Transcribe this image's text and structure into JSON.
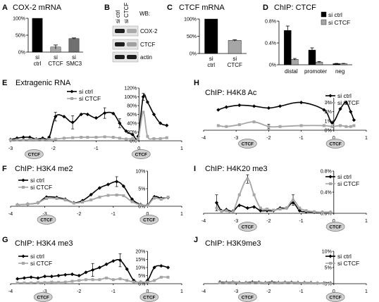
{
  "colors": {
    "black": "#000000",
    "gray": "#a6a6a6",
    "dark_gray": "#707070",
    "ctcf_marker_fill": "#d0d0d0"
  },
  "legend": {
    "si_ctrl": "si ctrl",
    "si_ctcf": "si CTCF"
  },
  "ctcf_marker_label": "CTCF",
  "chart_data": [
    {
      "id": "A",
      "type": "bar",
      "title": "COX-2 mRNA",
      "categories": [
        "si ctrl",
        "si CTCF",
        "si SMC3"
      ],
      "values": [
        100,
        15,
        40
      ],
      "errors": [
        0,
        6,
        2
      ],
      "bar_colors": [
        "black",
        "gray",
        "dark_gray"
      ],
      "ylim": [
        0,
        100
      ],
      "yticks": [
        0,
        50,
        100
      ],
      "ytick_labels": [
        "0%",
        "50%",
        "100%"
      ]
    },
    {
      "id": "B",
      "type": "western_blot",
      "label": "WB:",
      "lanes": [
        "si ctrl",
        "si CTCF"
      ],
      "rows": [
        {
          "name": "COX-2",
          "intensities": [
            1.0,
            0.3
          ]
        },
        {
          "name": "CTCF",
          "intensities": [
            1.0,
            0.35
          ]
        },
        {
          "name": "actin",
          "intensities": [
            1.0,
            1.0
          ]
        }
      ]
    },
    {
      "id": "C",
      "type": "bar",
      "title": "CTCF mRNA",
      "categories": [
        "si ctrl",
        "si CTCF"
      ],
      "values": [
        100,
        38
      ],
      "errors": [
        0,
        2
      ],
      "bar_colors": [
        "black",
        "gray"
      ],
      "ylim": [
        0,
        100
      ],
      "yticks": [
        0,
        50,
        100
      ],
      "ytick_labels": [
        "0%",
        "50%",
        "100%"
      ]
    },
    {
      "id": "D",
      "type": "bar",
      "title": "ChIP: CTCF",
      "categories": [
        "distal",
        "promoter",
        "neg"
      ],
      "series": [
        {
          "name": "si ctrl",
          "values": [
            0.63,
            0.27,
            0.02
          ],
          "errors": [
            0.08,
            0.04,
            0.005
          ]
        },
        {
          "name": "si CTCF",
          "values": [
            0.1,
            0.05,
            0.02
          ],
          "errors": [
            0.015,
            0.01,
            0.005
          ]
        }
      ],
      "ylim": [
        0,
        0.8
      ],
      "yticks": [
        0,
        0.4,
        0.8
      ],
      "ytick_labels": [
        "0%",
        "0.4%",
        "0.8%"
      ]
    },
    {
      "id": "E",
      "type": "line",
      "title": "Extragenic RNA",
      "xlim": [
        -3,
        1
      ],
      "xticks": [
        -3,
        -2,
        -1,
        0,
        1
      ],
      "xtick_labels": [
        "-3",
        "-2",
        "-1",
        "0",
        "1"
      ],
      "ylim": [
        0,
        120
      ],
      "yticks": [
        0,
        20,
        40,
        60,
        80,
        100,
        120
      ],
      "ytick_labels": [
        "0%",
        "20%",
        "40%",
        "60%",
        "80%",
        "100%",
        "120%"
      ],
      "ctcf_sites": [
        -2.45,
        0.05
      ],
      "series": [
        {
          "name": "si ctrl",
          "x": [
            -3.0,
            -2.85,
            -2.7,
            -2.55,
            -2.4,
            -2.25,
            -2.1,
            -1.95,
            -1.75,
            -1.55,
            -1.35,
            -1.2,
            -1.0,
            -0.8,
            -0.6,
            -0.45,
            -0.3,
            -0.15,
            -0.02,
            0.1,
            0.2,
            0.35,
            0.5,
            0.65
          ],
          "y": [
            3,
            6,
            8,
            8,
            4,
            6,
            8,
            55,
            55,
            42,
            60,
            60,
            52,
            63,
            62,
            40,
            22,
            14,
            10,
            100,
            88,
            60,
            40,
            35
          ],
          "err": [
            0,
            0,
            0,
            0,
            0,
            0,
            0,
            10,
            0,
            15,
            0,
            0,
            0,
            12,
            0,
            10,
            0,
            0,
            0,
            8,
            0,
            0,
            0,
            0
          ]
        },
        {
          "name": "si CTCF",
          "x": [
            -3.0,
            -2.85,
            -2.7,
            -2.55,
            -2.4,
            -2.25,
            -2.1,
            -1.95,
            -1.75,
            -1.55,
            -1.35,
            -1.2,
            -1.0,
            -0.8,
            -0.6,
            -0.45,
            -0.3,
            -0.15,
            -0.02,
            0.1,
            0.2,
            0.35,
            0.5,
            0.65
          ],
          "y": [
            2,
            2,
            2,
            3,
            3,
            2,
            3,
            4,
            6,
            7,
            8,
            8,
            8,
            9,
            8,
            6,
            4,
            5,
            5,
            65,
            10,
            5,
            5,
            7
          ],
          "err": [
            0,
            0,
            0,
            0,
            0,
            0,
            0,
            0,
            0,
            0,
            0,
            0,
            0,
            0,
            0,
            0,
            0,
            0,
            0,
            0,
            0,
            0,
            0,
            0
          ]
        }
      ]
    },
    {
      "id": "H",
      "type": "line",
      "title": "ChIP: H4K8 Ac",
      "xlim": [
        -4,
        1
      ],
      "xticks": [
        -4,
        -3,
        -2,
        -1,
        0,
        1
      ],
      "xtick_labels": [
        "-4",
        "-3",
        "-2",
        "-1",
        "0",
        "1"
      ],
      "ylim": [
        0,
        3.5
      ],
      "yticks": [
        0,
        1,
        2,
        3
      ],
      "ytick_labels": [
        "0%",
        "1%",
        "2%",
        "3%"
      ],
      "ctcf_sites": [
        -2.65,
        0.05
      ],
      "series": [
        {
          "name": "si ctrl",
          "x": [
            -3.55,
            -3.3,
            -2.9,
            -2.45,
            -2.0,
            -1.65,
            -1.0,
            -0.3,
            -0.05,
            0.2,
            0.38,
            0.52,
            0.62
          ],
          "y": [
            2.2,
            2.5,
            2.7,
            2.6,
            2.4,
            2.6,
            3.0,
            2.2,
            0.8,
            2.3,
            3.0,
            2.0,
            1.1
          ],
          "err": [
            0,
            0,
            0,
            0,
            0,
            0,
            0,
            0,
            0,
            0,
            0,
            0,
            0
          ]
        },
        {
          "name": "si CTCF",
          "x": [
            -3.55,
            -3.3,
            -2.9,
            -2.45,
            -2.0,
            -1.65,
            -1.0,
            -0.3,
            -0.05,
            0.2,
            0.38,
            0.52,
            0.62
          ],
          "y": [
            0.5,
            0.4,
            0.6,
            0.9,
            0.4,
            0.4,
            0.5,
            0.5,
            0.4,
            0.5,
            0.4,
            0.4,
            0.5
          ],
          "err": [
            0,
            0,
            0,
            0,
            0.25,
            0,
            0,
            0,
            0,
            0,
            0,
            0,
            0
          ]
        }
      ]
    },
    {
      "id": "F",
      "type": "line",
      "title": "ChIP: H3K4 me2",
      "xlim": [
        -4,
        1
      ],
      "xticks": [
        -4,
        -3,
        -2,
        -1,
        0,
        1
      ],
      "xtick_labels": [
        "-4",
        "-3",
        "-2",
        "-1",
        "0",
        "1"
      ],
      "ylim": [
        0,
        10
      ],
      "yticks": [
        0,
        5,
        10
      ],
      "ytick_labels": [
        "0%",
        "5%",
        "10%"
      ],
      "ctcf_sites": [
        -2.95,
        0.05
      ],
      "series": [
        {
          "name": "si ctrl",
          "x": [
            -3.8,
            -3.5,
            -3.2,
            -2.95,
            -2.65,
            -2.4,
            -2.15,
            -1.9,
            -1.65,
            -1.4,
            -1.15,
            -0.9,
            -0.7,
            -0.45,
            -0.2,
            0.0,
            0.2,
            0.4,
            0.6
          ],
          "y": [
            0.4,
            0.6,
            1.0,
            2.6,
            2.5,
            2.0,
            1.0,
            1.6,
            3.3,
            5.2,
            6.2,
            7.0,
            5.7,
            2.0,
            0.5,
            0.4,
            2.7,
            2.3,
            2.5
          ],
          "err": [
            0,
            0,
            0,
            0,
            0,
            0,
            0,
            0,
            0,
            0,
            0,
            1.4,
            0,
            0,
            0,
            0,
            0,
            0,
            0
          ]
        },
        {
          "name": "si CTCF",
          "x": [
            -3.8,
            -3.5,
            -3.2,
            -2.95,
            -2.65,
            -2.4,
            -2.15,
            -1.9,
            -1.65,
            -1.4,
            -1.15,
            -0.9,
            -0.7,
            -0.45,
            -0.2,
            0.0,
            0.2,
            0.4,
            0.6
          ],
          "y": [
            0.4,
            0.6,
            1.0,
            2.2,
            2.2,
            1.8,
            0.9,
            1.2,
            1.8,
            2.6,
            3.1,
            3.2,
            3.0,
            1.3,
            0.4,
            0.3,
            2.3,
            2.0,
            2.6
          ],
          "err": [
            0,
            0,
            0,
            0,
            0,
            0,
            0,
            0,
            0,
            0,
            0,
            0,
            0,
            0,
            0,
            0,
            0,
            0,
            0
          ]
        }
      ]
    },
    {
      "id": "I",
      "type": "line",
      "title": "ChIP: H4K20 me3",
      "xlim": [
        -4,
        1
      ],
      "xticks": [
        -4,
        -3,
        -2,
        -1,
        0,
        1
      ],
      "xtick_labels": [
        "-4",
        "-3",
        "-2",
        "-1",
        "0",
        "1"
      ],
      "ylim": [
        0,
        0.8
      ],
      "yticks": [
        0,
        0.4,
        0.8
      ],
      "ytick_labels": [
        "0.0%",
        "0.4%",
        "0.8%"
      ],
      "ctcf_sites": [
        -2.65,
        0.05
      ],
      "series": [
        {
          "name": "si ctrl",
          "x": [
            -3.6,
            -3.45,
            -3.3,
            -3.1,
            -2.9,
            -2.65,
            -2.45,
            -2.25,
            -2.05,
            -1.85,
            -1.65,
            -1.45,
            -1.25,
            -1.05,
            -0.85,
            -0.6,
            -0.35,
            -0.1
          ],
          "y": [
            0.2,
            0.05,
            0.07,
            0.04,
            0.15,
            0.1,
            0.12,
            0.05,
            0.05,
            0.05,
            0.1,
            0.1,
            0.2,
            0.05,
            0.03,
            0.02,
            0.02,
            0.02
          ],
          "err": [
            0.15,
            0,
            0,
            0,
            0,
            0,
            0,
            0,
            0,
            0,
            0,
            0,
            0,
            0,
            0,
            0,
            0,
            0
          ]
        },
        {
          "name": "si CTCF",
          "x": [
            -3.6,
            -3.45,
            -3.3,
            -3.1,
            -2.9,
            -2.65,
            -2.45,
            -2.25,
            -2.05,
            -1.85,
            -1.65,
            -1.45,
            -1.25,
            -1.05,
            -0.85,
            -0.6,
            -0.35,
            -0.1
          ],
          "y": [
            0.1,
            0.04,
            0.05,
            0.03,
            0.35,
            0.65,
            0.35,
            0.1,
            0.08,
            0.06,
            0.08,
            0.1,
            0.25,
            0.1,
            0.05,
            0.03,
            0.02,
            0.02
          ],
          "err": [
            0,
            0,
            0,
            0,
            0,
            0.08,
            0,
            0,
            0,
            0,
            0,
            0,
            0.1,
            0,
            0,
            0,
            0,
            0
          ]
        }
      ]
    },
    {
      "id": "G",
      "type": "line",
      "title": "ChIP: H3K4 me3",
      "xlim": [
        -4,
        1
      ],
      "xticks": [
        -4,
        -3,
        -2,
        -1,
        0,
        1
      ],
      "xtick_labels": [
        "-4",
        "-3",
        "-2",
        "-1",
        "0",
        "1"
      ],
      "ylim": [
        0,
        20
      ],
      "yticks": [
        0,
        5,
        10,
        15,
        20
      ],
      "ytick_labels": [
        "0%",
        "5%",
        "10%",
        "15%",
        "20%"
      ],
      "ctcf_sites": [
        -3.05,
        0.05
      ],
      "series": [
        {
          "name": "si ctrl",
          "x": [
            -3.8,
            -3.6,
            -3.4,
            -3.2,
            -3.0,
            -2.8,
            -2.6,
            -2.4,
            -2.2,
            -2.0,
            -1.8,
            -1.6,
            -1.4,
            -1.2,
            -1.0,
            -0.8,
            -0.6,
            -0.4,
            -0.2,
            0.0,
            0.2,
            0.4,
            0.6
          ],
          "y": [
            3,
            3.5,
            4,
            3.5,
            4.5,
            4.5,
            5,
            5.5,
            5.8,
            5,
            7,
            8.5,
            10,
            12,
            14,
            14.5,
            9,
            2,
            1,
            2,
            10,
            11,
            10
          ],
          "err": [
            0,
            0,
            0,
            0,
            0,
            0,
            0,
            0,
            0,
            0,
            0,
            4,
            0,
            0,
            0,
            4,
            0,
            0,
            0,
            0,
            0,
            0,
            0
          ]
        },
        {
          "name": "si CTCF",
          "x": [
            -3.8,
            -3.6,
            -3.4,
            -3.2,
            -3.0,
            -2.8,
            -2.6,
            -2.4,
            -2.2,
            -2.0,
            -1.8,
            -1.6,
            -1.4,
            -1.2,
            -1.0,
            -0.8,
            -0.6,
            -0.4,
            -0.2,
            0.0,
            0.2,
            0.4,
            0.6
          ],
          "y": [
            0.5,
            0.5,
            0.5,
            0.7,
            0.7,
            1.0,
            0.8,
            1.0,
            1.5,
            2.0,
            2.5,
            2.5,
            2.5,
            3.5,
            2.5,
            3.0,
            2.0,
            1.0,
            1.0,
            1.0,
            2.0,
            4.0,
            4.0
          ],
          "err": [
            0,
            0,
            0,
            0,
            0,
            0,
            0,
            0,
            0,
            0,
            0,
            0,
            0,
            0,
            0,
            0,
            0,
            0,
            0,
            0,
            0,
            0,
            0
          ]
        }
      ]
    },
    {
      "id": "J",
      "type": "line",
      "title": "ChIP: H3K9me3",
      "xlim": [
        -4,
        1
      ],
      "xticks": [
        -4,
        -3,
        -2,
        -1,
        0,
        1
      ],
      "xtick_labels": [
        "-4",
        "-3",
        "-2",
        "-1",
        "0",
        "1"
      ],
      "ylim": [
        0,
        10
      ],
      "yticks": [
        0,
        5,
        10
      ],
      "ytick_labels": [
        "0%",
        "5%",
        "10%"
      ],
      "ctcf_sites": [
        -2.65,
        0.05
      ],
      "series": [
        {
          "name": "si ctrl",
          "x": [
            -3.5,
            -3.3,
            -3.1,
            -2.9,
            -2.7,
            -2.5,
            -2.3,
            -2.1,
            -1.9,
            -1.7,
            -1.5,
            -1.3,
            -1.1,
            -0.9,
            -0.7,
            -0.5,
            -0.3,
            -0.1
          ],
          "y": [
            0.5,
            0.4,
            0.5,
            0.3,
            0.3,
            0.5,
            0.4,
            0.3,
            0.5,
            0.3,
            0.4,
            0.4,
            0.3,
            0.3,
            0.3,
            0.2,
            0.2,
            0.2
          ],
          "err": [
            0,
            0,
            0,
            0,
            0,
            0,
            0,
            0,
            0,
            0,
            0,
            0,
            0,
            0,
            0,
            0,
            0,
            0
          ]
        },
        {
          "name": "si CTCF",
          "x": [
            -3.5,
            -3.3,
            -3.1,
            -2.9,
            -2.7,
            -2.5,
            -2.3,
            -2.1,
            -1.9,
            -1.7,
            -1.5,
            -1.3,
            -1.1,
            -0.9,
            -0.7,
            -0.5,
            -0.3,
            -0.1
          ],
          "y": [
            0.3,
            0.3,
            0.4,
            0.2,
            0.2,
            0.3,
            0.3,
            0.2,
            0.3,
            0.2,
            0.3,
            0.3,
            0.2,
            0.2,
            0.2,
            0.2,
            0.1,
            0.1
          ],
          "err": [
            0,
            0,
            0,
            0,
            0,
            0,
            0,
            0,
            0,
            0,
            0,
            0,
            0,
            0,
            0,
            0,
            0,
            0
          ]
        }
      ]
    }
  ]
}
